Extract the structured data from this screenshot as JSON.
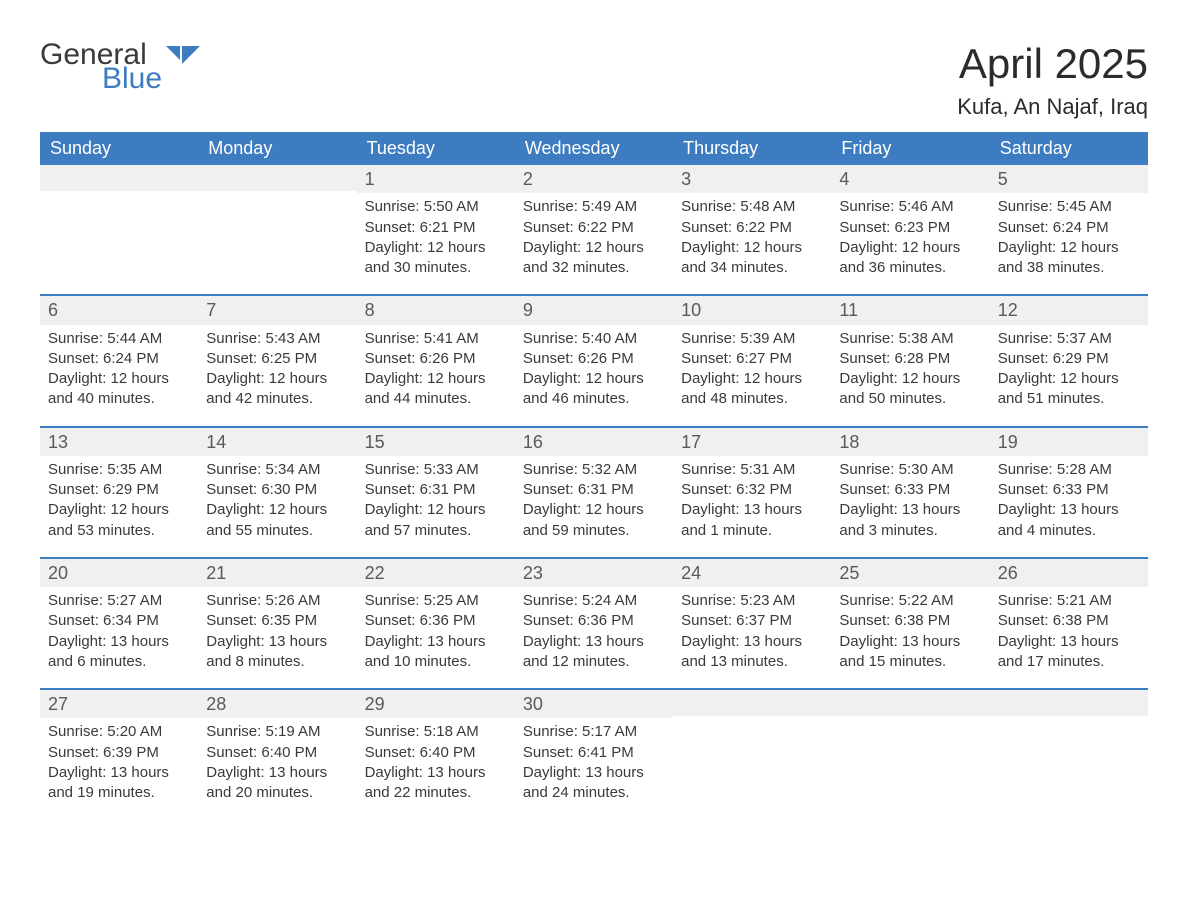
{
  "brand": {
    "line1": "General",
    "line2": "Blue",
    "accent_color": "#3d7cc0"
  },
  "header": {
    "title": "April 2025",
    "subtitle": "Kufa, An Najaf, Iraq"
  },
  "calendar": {
    "type": "table",
    "header_bg": "#3d7cc0",
    "header_text_color": "#ffffff",
    "row_border_color": "#3d7cc0",
    "daynum_bg": "#f0f0f0",
    "body_text_color": "#3a3a3a",
    "font_family": "Segoe UI",
    "title_fontsize_pt": 32,
    "subtitle_fontsize_pt": 17,
    "header_fontsize_pt": 14,
    "cell_fontsize_pt": 11,
    "columns": [
      "Sunday",
      "Monday",
      "Tuesday",
      "Wednesday",
      "Thursday",
      "Friday",
      "Saturday"
    ],
    "weeks": [
      [
        null,
        null,
        {
          "d": "1",
          "sr": "5:50 AM",
          "ss": "6:21 PM",
          "dl": "12 hours and 30 minutes."
        },
        {
          "d": "2",
          "sr": "5:49 AM",
          "ss": "6:22 PM",
          "dl": "12 hours and 32 minutes."
        },
        {
          "d": "3",
          "sr": "5:48 AM",
          "ss": "6:22 PM",
          "dl": "12 hours and 34 minutes."
        },
        {
          "d": "4",
          "sr": "5:46 AM",
          "ss": "6:23 PM",
          "dl": "12 hours and 36 minutes."
        },
        {
          "d": "5",
          "sr": "5:45 AM",
          "ss": "6:24 PM",
          "dl": "12 hours and 38 minutes."
        }
      ],
      [
        {
          "d": "6",
          "sr": "5:44 AM",
          "ss": "6:24 PM",
          "dl": "12 hours and 40 minutes."
        },
        {
          "d": "7",
          "sr": "5:43 AM",
          "ss": "6:25 PM",
          "dl": "12 hours and 42 minutes."
        },
        {
          "d": "8",
          "sr": "5:41 AM",
          "ss": "6:26 PM",
          "dl": "12 hours and 44 minutes."
        },
        {
          "d": "9",
          "sr": "5:40 AM",
          "ss": "6:26 PM",
          "dl": "12 hours and 46 minutes."
        },
        {
          "d": "10",
          "sr": "5:39 AM",
          "ss": "6:27 PM",
          "dl": "12 hours and 48 minutes."
        },
        {
          "d": "11",
          "sr": "5:38 AM",
          "ss": "6:28 PM",
          "dl": "12 hours and 50 minutes."
        },
        {
          "d": "12",
          "sr": "5:37 AM",
          "ss": "6:29 PM",
          "dl": "12 hours and 51 minutes."
        }
      ],
      [
        {
          "d": "13",
          "sr": "5:35 AM",
          "ss": "6:29 PM",
          "dl": "12 hours and 53 minutes."
        },
        {
          "d": "14",
          "sr": "5:34 AM",
          "ss": "6:30 PM",
          "dl": "12 hours and 55 minutes."
        },
        {
          "d": "15",
          "sr": "5:33 AM",
          "ss": "6:31 PM",
          "dl": "12 hours and 57 minutes."
        },
        {
          "d": "16",
          "sr": "5:32 AM",
          "ss": "6:31 PM",
          "dl": "12 hours and 59 minutes."
        },
        {
          "d": "17",
          "sr": "5:31 AM",
          "ss": "6:32 PM",
          "dl": "13 hours and 1 minute."
        },
        {
          "d": "18",
          "sr": "5:30 AM",
          "ss": "6:33 PM",
          "dl": "13 hours and 3 minutes."
        },
        {
          "d": "19",
          "sr": "5:28 AM",
          "ss": "6:33 PM",
          "dl": "13 hours and 4 minutes."
        }
      ],
      [
        {
          "d": "20",
          "sr": "5:27 AM",
          "ss": "6:34 PM",
          "dl": "13 hours and 6 minutes."
        },
        {
          "d": "21",
          "sr": "5:26 AM",
          "ss": "6:35 PM",
          "dl": "13 hours and 8 minutes."
        },
        {
          "d": "22",
          "sr": "5:25 AM",
          "ss": "6:36 PM",
          "dl": "13 hours and 10 minutes."
        },
        {
          "d": "23",
          "sr": "5:24 AM",
          "ss": "6:36 PM",
          "dl": "13 hours and 12 minutes."
        },
        {
          "d": "24",
          "sr": "5:23 AM",
          "ss": "6:37 PM",
          "dl": "13 hours and 13 minutes."
        },
        {
          "d": "25",
          "sr": "5:22 AM",
          "ss": "6:38 PM",
          "dl": "13 hours and 15 minutes."
        },
        {
          "d": "26",
          "sr": "5:21 AM",
          "ss": "6:38 PM",
          "dl": "13 hours and 17 minutes."
        }
      ],
      [
        {
          "d": "27",
          "sr": "5:20 AM",
          "ss": "6:39 PM",
          "dl": "13 hours and 19 minutes."
        },
        {
          "d": "28",
          "sr": "5:19 AM",
          "ss": "6:40 PM",
          "dl": "13 hours and 20 minutes."
        },
        {
          "d": "29",
          "sr": "5:18 AM",
          "ss": "6:40 PM",
          "dl": "13 hours and 22 minutes."
        },
        {
          "d": "30",
          "sr": "5:17 AM",
          "ss": "6:41 PM",
          "dl": "13 hours and 24 minutes."
        },
        null,
        null,
        null
      ]
    ],
    "labels": {
      "sunrise": "Sunrise: ",
      "sunset": "Sunset: ",
      "daylight": "Daylight: "
    }
  }
}
